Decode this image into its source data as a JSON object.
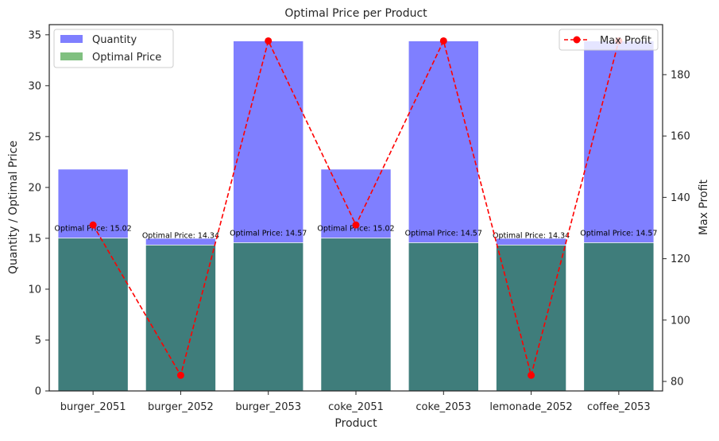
{
  "chart_data": {
    "type": "bar",
    "title": "Optimal Price per Product",
    "xlabel": "Product",
    "ylabel": "Quantity / Optimal Price",
    "y2label": "Max Profit",
    "categories": [
      "burger_2051",
      "burger_2052",
      "burger_2053",
      "coke_2051",
      "coke_2053",
      "lemonade_2052",
      "coffee_2053"
    ],
    "series": [
      {
        "name": "Quantity",
        "type": "bar",
        "axis": "left",
        "color": "#7f7fff",
        "values": [
          21.8,
          15.0,
          34.4,
          21.8,
          34.4,
          15.0,
          34.4
        ]
      },
      {
        "name": "Optimal Price",
        "type": "bar",
        "axis": "left",
        "color": "#3f7d7b",
        "values": [
          15.02,
          14.34,
          14.57,
          15.02,
          14.57,
          14.34,
          14.57
        ]
      },
      {
        "name": "Max Profit",
        "type": "line",
        "axis": "right",
        "color": "#ff0000",
        "marker": "circle",
        "linestyle": "dashed",
        "values": [
          131,
          82,
          191,
          131,
          191,
          82,
          191
        ]
      }
    ],
    "bar_labels": [
      "Optimal Price: 15.02",
      "Optimal Price: 14.34",
      "Optimal Price: 14.57",
      "Optimal Price: 15.02",
      "Optimal Price: 14.57",
      "Optimal Price: 14.34",
      "Optimal Price: 14.57"
    ],
    "ylim": [
      0,
      36
    ],
    "yticks": [
      "0",
      "5",
      "10",
      "15",
      "20",
      "25",
      "30",
      "35"
    ],
    "y2lim": [
      76.9,
      196.3
    ],
    "y2ticks": [
      "80",
      "100",
      "120",
      "140",
      "160",
      "180"
    ],
    "legend_left": {
      "placement": "top-left",
      "items": [
        {
          "label": "Quantity",
          "color": "#7f7fff"
        },
        {
          "label": "Optimal Price",
          "color": "#80c080"
        }
      ]
    },
    "legend_right": {
      "placement": "top-right",
      "items": [
        {
          "label": "Max Profit",
          "color": "#ff0000"
        }
      ]
    },
    "grid": false
  }
}
